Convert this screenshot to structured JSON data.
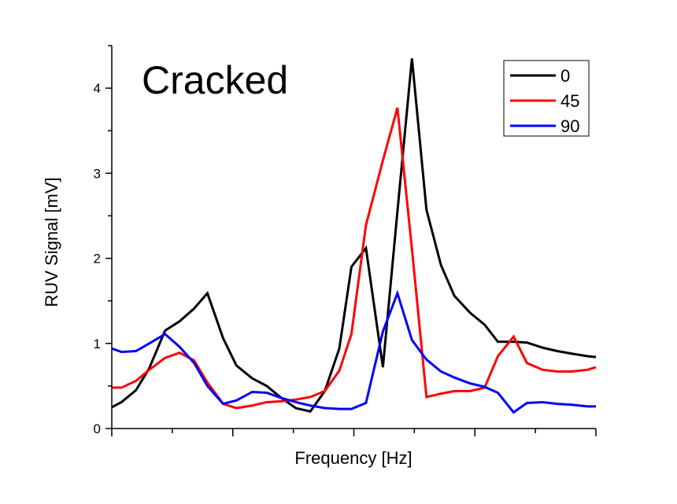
{
  "chart_data": {
    "type": "line",
    "title": "Cracked",
    "xlabel": "Frequency [Hz]",
    "ylabel": "RUV Signal [mV]",
    "xlim": [
      0,
      4
    ],
    "ylim": [
      0,
      4.5
    ],
    "yticks": [
      "0",
      "1",
      "2",
      "3",
      "4"
    ],
    "xticks": [],
    "grid": false,
    "legend_position": "top-right",
    "x": [
      0,
      0.08,
      0.2,
      0.31,
      0.44,
      0.56,
      0.68,
      0.79,
      0.92,
      1.03,
      1.16,
      1.28,
      1.4,
      1.52,
      1.64,
      1.76,
      1.88,
      1.98,
      2.1,
      2.24,
      2.36,
      2.48,
      2.6,
      2.72,
      2.83,
      2.96,
      3.08,
      3.19,
      3.32,
      3.43,
      3.56,
      3.68,
      3.8,
      3.93,
      4.0
    ],
    "series": [
      {
        "name": "0",
        "color": "#000000",
        "values": [
          0.25,
          0.31,
          0.45,
          0.71,
          1.15,
          1.26,
          1.41,
          1.59,
          1.06,
          0.74,
          0.59,
          0.5,
          0.36,
          0.24,
          0.2,
          0.44,
          0.94,
          1.9,
          2.12,
          0.72,
          2.55,
          4.35,
          2.57,
          1.92,
          1.56,
          1.36,
          1.22,
          1.02,
          1.02,
          1.01,
          0.95,
          0.91,
          0.88,
          0.85,
          0.84
        ]
      },
      {
        "name": "45",
        "color": "#ff0000",
        "values": [
          0.48,
          0.48,
          0.56,
          0.69,
          0.83,
          0.89,
          0.8,
          0.54,
          0.29,
          0.24,
          0.27,
          0.31,
          0.32,
          0.34,
          0.37,
          0.44,
          0.68,
          1.11,
          2.39,
          3.15,
          3.77,
          2.11,
          0.37,
          0.41,
          0.44,
          0.44,
          0.48,
          0.85,
          1.08,
          0.77,
          0.69,
          0.67,
          0.67,
          0.69,
          0.72
        ]
      },
      {
        "name": "90",
        "color": "#0000ff",
        "values": [
          0.94,
          0.9,
          0.91,
          1.0,
          1.11,
          0.96,
          0.77,
          0.5,
          0.29,
          0.33,
          0.43,
          0.42,
          0.36,
          0.31,
          0.27,
          0.24,
          0.23,
          0.23,
          0.3,
          1.14,
          1.59,
          1.04,
          0.81,
          0.67,
          0.6,
          0.53,
          0.49,
          0.42,
          0.19,
          0.3,
          0.31,
          0.29,
          0.28,
          0.26,
          0.26
        ]
      }
    ]
  }
}
